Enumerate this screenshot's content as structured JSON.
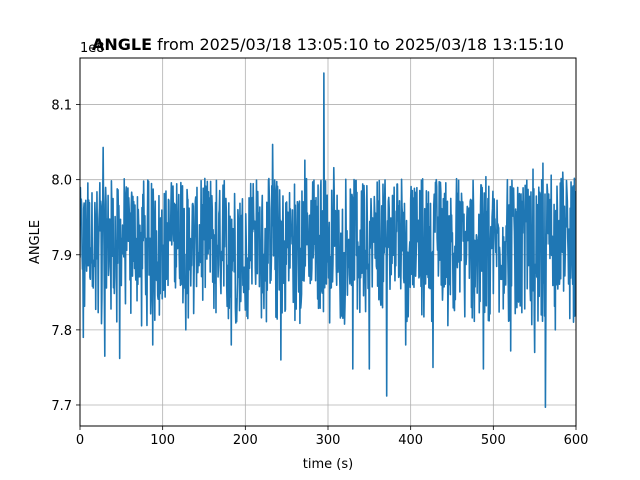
{
  "chart_data": {
    "type": "line",
    "title_bold": "ANGLE",
    "title_rest": " from 2025/03/18 13:05:10 to 2025/03/18 13:15:10",
    "xlabel": "time (s)",
    "ylabel": "ANGLE",
    "offset_text": "1e8",
    "xlim": [
      0,
      600
    ],
    "ylim": [
      7.672,
      8.162
    ],
    "y_scale_note": "values shown ×1e8",
    "x_ticks": [
      0,
      100,
      200,
      300,
      400,
      500,
      600
    ],
    "x_tick_labels": [
      "0",
      "100",
      "200",
      "300",
      "400",
      "500",
      "600"
    ],
    "y_ticks": [
      7.7,
      7.8,
      7.9,
      8.0,
      8.1
    ],
    "y_tick_labels": [
      "7.7",
      "7.8",
      "7.9",
      "8.0",
      "8.1"
    ],
    "grid": true,
    "line_color": "#1f77b4",
    "series": [
      {
        "sample_interval_s": 0.5,
        "band_center": 7.925,
        "band_low": 7.855,
        "band_high": 7.99,
        "spikes": [
          [
            28,
            8.043
          ],
          [
            233,
            8.047
          ],
          [
            272,
            8.026
          ],
          [
            295,
            8.142
          ],
          [
            307,
            8.016
          ],
          [
            548,
            8.014
          ],
          [
            560,
            8.022
          ],
          [
            570,
            8.006
          ],
          [
            584,
            8.01
          ],
          [
            491,
            8.004
          ],
          [
            4,
            7.79
          ],
          [
            30,
            7.765
          ],
          [
            48,
            7.762
          ],
          [
            88,
            7.78
          ],
          [
            128,
            7.8
          ],
          [
            183,
            7.78
          ],
          [
            243,
            7.76
          ],
          [
            330,
            7.748
          ],
          [
            350,
            7.748
          ],
          [
            371,
            7.712
          ],
          [
            394,
            7.78
          ],
          [
            427,
            7.75
          ],
          [
            488,
            7.748
          ],
          [
            521,
            7.772
          ],
          [
            550,
            7.77
          ],
          [
            563,
            7.697
          ],
          [
            575,
            7.8
          ]
        ]
      }
    ]
  }
}
